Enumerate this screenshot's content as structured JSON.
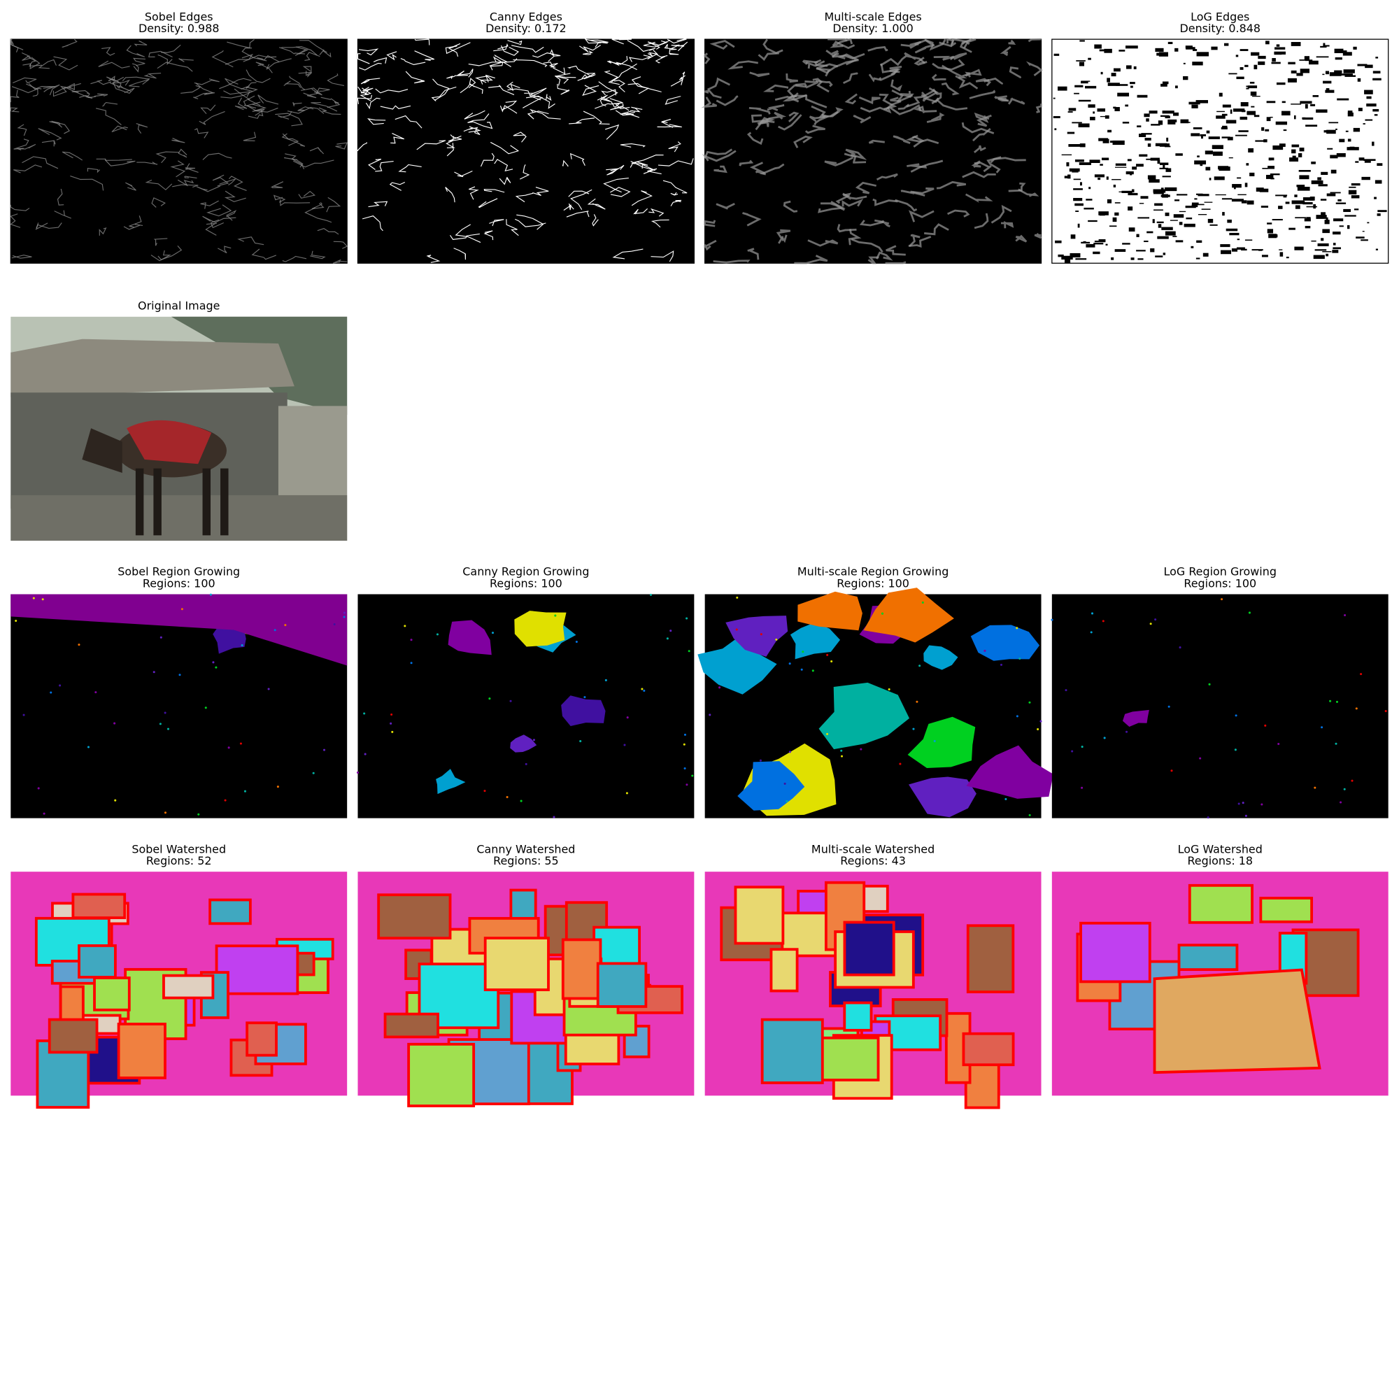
{
  "edges": [
    {
      "title": "Sobel Edges",
      "subtitle": "Density: 0.988"
    },
    {
      "title": "Canny Edges",
      "subtitle": "Density: 0.172"
    },
    {
      "title": "Multi-scale Edges",
      "subtitle": "Density: 1.000"
    },
    {
      "title": "LoG Edges",
      "subtitle": "Density: 0.848"
    }
  ],
  "original": {
    "title": "Original Image"
  },
  "region_growing": [
    {
      "title": "Sobel Region Growing",
      "subtitle": "Regions: 100"
    },
    {
      "title": "Canny Region Growing",
      "subtitle": "Regions: 100"
    },
    {
      "title": "Multi-scale Region Growing",
      "subtitle": "Regions: 100"
    },
    {
      "title": "LoG Region Growing",
      "subtitle": "Regions: 100"
    }
  ],
  "watershed": [
    {
      "title": "Sobel Watershed",
      "subtitle": "Regions: 52"
    },
    {
      "title": "Canny Watershed",
      "subtitle": "Regions: 55"
    },
    {
      "title": "Multi-scale Watershed",
      "subtitle": "Regions: 43"
    },
    {
      "title": "LoG Watershed",
      "subtitle": "Regions: 18"
    }
  ]
}
